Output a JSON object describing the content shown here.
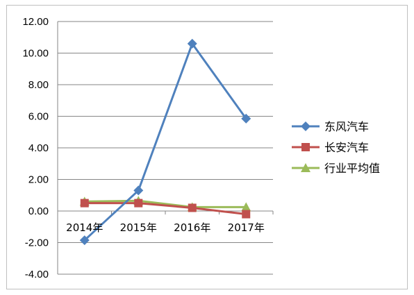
{
  "chart_data": {
    "type": "line",
    "categories": [
      "2014年",
      "2015年",
      "2016年",
      "2017年"
    ],
    "series": [
      {
        "name": "东风汽车",
        "values": [
          -1.85,
          1.3,
          10.6,
          5.85
        ],
        "color": "#4f81bd",
        "marker": "diamond"
      },
      {
        "name": "长安汽车",
        "values": [
          0.5,
          0.5,
          0.2,
          -0.2
        ],
        "color": "#c0504d",
        "marker": "square"
      },
      {
        "name": "行业平均值",
        "values": [
          0.6,
          0.65,
          0.25,
          0.25
        ],
        "color": "#9bbb59",
        "marker": "triangle"
      }
    ],
    "yticks": [
      "12.00",
      "10.00",
      "8.00",
      "6.00",
      "4.00",
      "2.00",
      "0.00",
      "-2.00",
      "-4.00"
    ],
    "ylim": [
      -4,
      12
    ],
    "grid": true,
    "legend": "right"
  }
}
